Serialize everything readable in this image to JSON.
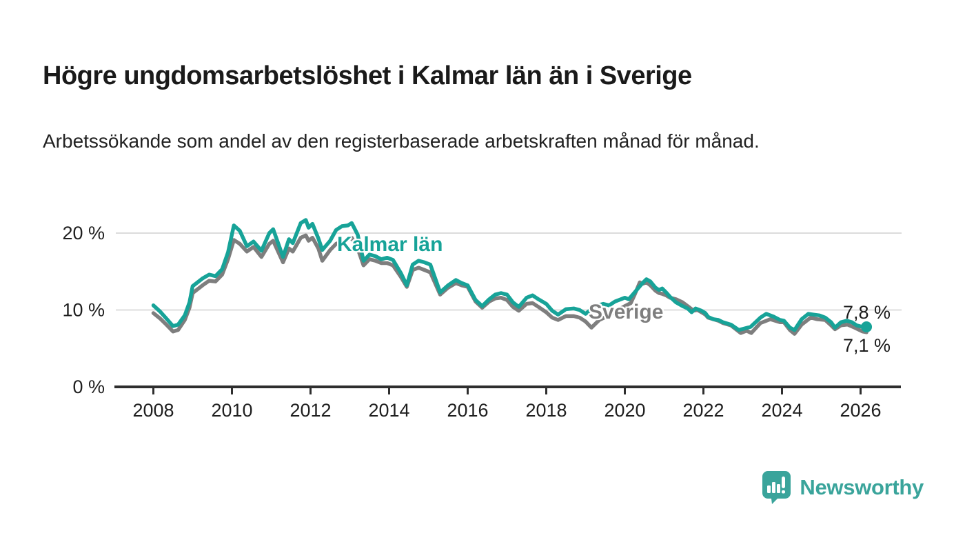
{
  "header": {
    "title": "Högre ungdomsarbetslöshet i Kalmar län än i Sverige",
    "subtitle": "Arbetssökande som andel av den registerbaserade arbetskraften månad för månad."
  },
  "colors": {
    "kalmar": "#17A398",
    "sverige": "#7E7E7E",
    "axis": "#2e2e2e",
    "grid": "#dcdcdc",
    "tick_text": "#1f1f1f",
    "logo_teal": "#3AA49B"
  },
  "annotations": {
    "kalmar_line_label": "Kalmar län",
    "sverige_line_label": "Sverige",
    "kalmar_end_value": "7,8 %",
    "sverige_end_value": "7,1 %"
  },
  "footer": {
    "brand": "Newsworthy",
    "logo_icon": "bar-chart-speech-bubble-icon"
  },
  "chart_data": {
    "type": "line",
    "title": "Högre ungdomsarbetslöshet i Kalmar län än i Sverige",
    "xlabel": "",
    "ylabel": "Arbetssökande som andel av den registerbaserade arbetskraften",
    "x_unit": "year (monthly data)",
    "y_unit": "%",
    "ylim": [
      0,
      22
    ],
    "xlim": [
      2007.1,
      2027.1
    ],
    "grid": "horizontal",
    "legend_position": "inline-labels",
    "y_ticks": [
      {
        "value": 0,
        "label": "0 %"
      },
      {
        "value": 10,
        "label": "10 %"
      },
      {
        "value": 20,
        "label": "20 %"
      }
    ],
    "x_ticks": [
      {
        "value": 2008,
        "label": "2008"
      },
      {
        "value": 2010,
        "label": "2010"
      },
      {
        "value": 2012,
        "label": "2012"
      },
      {
        "value": 2014,
        "label": "2014"
      },
      {
        "value": 2016,
        "label": "2016"
      },
      {
        "value": 2018,
        "label": "2018"
      },
      {
        "value": 2020,
        "label": "2020"
      },
      {
        "value": 2022,
        "label": "2022"
      },
      {
        "value": 2024,
        "label": "2024"
      },
      {
        "value": 2026,
        "label": "2026"
      }
    ],
    "series": [
      {
        "name": "Sverige",
        "color": "#7E7E7E",
        "end_value": 7.1,
        "end_label": "7,1 %",
        "end_dot": false,
        "points": [
          [
            2008.0,
            9.6
          ],
          [
            2008.17,
            8.9
          ],
          [
            2008.33,
            8.1
          ],
          [
            2008.5,
            7.2
          ],
          [
            2008.63,
            7.4
          ],
          [
            2008.8,
            8.7
          ],
          [
            2008.92,
            10.3
          ],
          [
            2009.0,
            12.2
          ],
          [
            2009.25,
            13.2
          ],
          [
            2009.42,
            13.8
          ],
          [
            2009.58,
            13.7
          ],
          [
            2009.75,
            14.6
          ],
          [
            2009.9,
            16.6
          ],
          [
            2010.05,
            19.1
          ],
          [
            2010.2,
            18.6
          ],
          [
            2010.38,
            17.6
          ],
          [
            2010.55,
            18.2
          ],
          [
            2010.75,
            16.9
          ],
          [
            2010.95,
            18.6
          ],
          [
            2011.05,
            19.0
          ],
          [
            2011.3,
            16.2
          ],
          [
            2011.45,
            18.0
          ],
          [
            2011.55,
            17.6
          ],
          [
            2011.75,
            19.4
          ],
          [
            2011.88,
            19.7
          ],
          [
            2011.95,
            19.0
          ],
          [
            2012.05,
            19.4
          ],
          [
            2012.2,
            18.0
          ],
          [
            2012.3,
            16.4
          ],
          [
            2012.5,
            17.8
          ],
          [
            2012.65,
            18.6
          ],
          [
            2012.8,
            18.9
          ],
          [
            2012.95,
            19.1
          ],
          [
            2013.05,
            19.4
          ],
          [
            2013.2,
            18.0
          ],
          [
            2013.35,
            15.8
          ],
          [
            2013.5,
            16.6
          ],
          [
            2013.65,
            16.4
          ],
          [
            2013.8,
            16.1
          ],
          [
            2013.95,
            16.1
          ],
          [
            2014.1,
            15.8
          ],
          [
            2014.3,
            14.3
          ],
          [
            2014.45,
            13.0
          ],
          [
            2014.6,
            15.2
          ],
          [
            2014.75,
            15.5
          ],
          [
            2014.9,
            15.2
          ],
          [
            2015.05,
            14.9
          ],
          [
            2015.3,
            12.0
          ],
          [
            2015.5,
            12.9
          ],
          [
            2015.7,
            13.5
          ],
          [
            2015.85,
            13.2
          ],
          [
            2016.0,
            13.0
          ],
          [
            2016.2,
            11.1
          ],
          [
            2016.37,
            10.3
          ],
          [
            2016.55,
            11.1
          ],
          [
            2016.7,
            11.5
          ],
          [
            2016.85,
            11.6
          ],
          [
            2017.0,
            11.3
          ],
          [
            2017.15,
            10.4
          ],
          [
            2017.3,
            9.9
          ],
          [
            2017.5,
            10.8
          ],
          [
            2017.65,
            10.9
          ],
          [
            2017.8,
            10.4
          ],
          [
            2018.0,
            9.7
          ],
          [
            2018.15,
            9.0
          ],
          [
            2018.3,
            8.7
          ],
          [
            2018.5,
            9.2
          ],
          [
            2018.7,
            9.2
          ],
          [
            2018.85,
            9.0
          ],
          [
            2019.0,
            8.5
          ],
          [
            2019.15,
            7.7
          ],
          [
            2019.35,
            8.7
          ],
          [
            2019.6,
            9.3
          ],
          [
            2019.8,
            9.9
          ],
          [
            2020.0,
            10.5
          ],
          [
            2020.15,
            10.9
          ],
          [
            2020.25,
            12.0
          ],
          [
            2020.38,
            13.6
          ],
          [
            2020.45,
            13.4
          ],
          [
            2020.55,
            13.6
          ],
          [
            2020.65,
            13.2
          ],
          [
            2020.78,
            12.5
          ],
          [
            2020.87,
            12.2
          ],
          [
            2020.95,
            12.1
          ],
          [
            2021.05,
            11.9
          ],
          [
            2021.15,
            11.6
          ],
          [
            2021.3,
            11.4
          ],
          [
            2021.47,
            11.0
          ],
          [
            2021.6,
            10.5
          ],
          [
            2021.75,
            9.9
          ],
          [
            2021.85,
            10.0
          ],
          [
            2021.95,
            9.7
          ],
          [
            2022.05,
            9.4
          ],
          [
            2022.12,
            9.0
          ],
          [
            2022.25,
            8.8
          ],
          [
            2022.38,
            8.6
          ],
          [
            2022.5,
            8.3
          ],
          [
            2022.7,
            8.0
          ],
          [
            2022.95,
            7.0
          ],
          [
            2023.1,
            7.3
          ],
          [
            2023.22,
            7.0
          ],
          [
            2023.45,
            8.3
          ],
          [
            2023.7,
            8.8
          ],
          [
            2023.95,
            8.4
          ],
          [
            2024.05,
            8.4
          ],
          [
            2024.2,
            7.4
          ],
          [
            2024.32,
            6.9
          ],
          [
            2024.5,
            8.1
          ],
          [
            2024.73,
            9.0
          ],
          [
            2024.9,
            8.8
          ],
          [
            2025.1,
            8.7
          ],
          [
            2025.25,
            8.0
          ],
          [
            2025.35,
            7.5
          ],
          [
            2025.5,
            8.0
          ],
          [
            2025.67,
            8.1
          ],
          [
            2025.85,
            7.7
          ],
          [
            2026.05,
            7.2
          ],
          [
            2026.15,
            7.1
          ]
        ]
      },
      {
        "name": "Kalmar län",
        "color": "#17A398",
        "end_value": 7.8,
        "end_label": "7,8 %",
        "end_dot": true,
        "points": [
          [
            2008.0,
            10.6
          ],
          [
            2008.17,
            9.8
          ],
          [
            2008.33,
            8.9
          ],
          [
            2008.5,
            7.9
          ],
          [
            2008.63,
            8.1
          ],
          [
            2008.8,
            9.3
          ],
          [
            2008.92,
            11.0
          ],
          [
            2009.0,
            13.1
          ],
          [
            2009.25,
            14.1
          ],
          [
            2009.42,
            14.6
          ],
          [
            2009.58,
            14.4
          ],
          [
            2009.75,
            15.3
          ],
          [
            2009.9,
            17.5
          ],
          [
            2010.05,
            21.0
          ],
          [
            2010.2,
            20.3
          ],
          [
            2010.38,
            18.3
          ],
          [
            2010.55,
            18.9
          ],
          [
            2010.75,
            17.7
          ],
          [
            2010.95,
            20.0
          ],
          [
            2011.05,
            20.5
          ],
          [
            2011.3,
            16.9
          ],
          [
            2011.45,
            19.2
          ],
          [
            2011.55,
            18.7
          ],
          [
            2011.75,
            21.3
          ],
          [
            2011.88,
            21.7
          ],
          [
            2011.95,
            20.7
          ],
          [
            2012.05,
            21.2
          ],
          [
            2012.2,
            19.3
          ],
          [
            2012.3,
            17.8
          ],
          [
            2012.5,
            19.0
          ],
          [
            2012.65,
            20.4
          ],
          [
            2012.8,
            20.9
          ],
          [
            2012.95,
            21.0
          ],
          [
            2013.05,
            21.3
          ],
          [
            2013.2,
            19.8
          ],
          [
            2013.35,
            16.4
          ],
          [
            2013.5,
            17.2
          ],
          [
            2013.65,
            17.0
          ],
          [
            2013.8,
            16.6
          ],
          [
            2013.95,
            16.8
          ],
          [
            2014.1,
            16.5
          ],
          [
            2014.3,
            14.8
          ],
          [
            2014.45,
            13.2
          ],
          [
            2014.6,
            15.9
          ],
          [
            2014.75,
            16.4
          ],
          [
            2014.9,
            16.2
          ],
          [
            2015.05,
            15.9
          ],
          [
            2015.3,
            12.3
          ],
          [
            2015.5,
            13.2
          ],
          [
            2015.7,
            13.9
          ],
          [
            2015.85,
            13.5
          ],
          [
            2016.0,
            13.2
          ],
          [
            2016.2,
            11.3
          ],
          [
            2016.37,
            10.5
          ],
          [
            2016.55,
            11.4
          ],
          [
            2016.7,
            12.0
          ],
          [
            2016.85,
            12.2
          ],
          [
            2017.0,
            12.0
          ],
          [
            2017.15,
            11.0
          ],
          [
            2017.3,
            10.4
          ],
          [
            2017.5,
            11.6
          ],
          [
            2017.65,
            11.9
          ],
          [
            2017.8,
            11.4
          ],
          [
            2018.0,
            10.8
          ],
          [
            2018.15,
            9.9
          ],
          [
            2018.3,
            9.4
          ],
          [
            2018.5,
            10.1
          ],
          [
            2018.7,
            10.2
          ],
          [
            2018.85,
            10.0
          ],
          [
            2019.0,
            9.5
          ],
          [
            2019.25,
            10.5
          ],
          [
            2019.45,
            10.8
          ],
          [
            2019.6,
            10.6
          ],
          [
            2019.75,
            11.1
          ],
          [
            2019.9,
            11.4
          ],
          [
            2020.0,
            11.6
          ],
          [
            2020.1,
            11.4
          ],
          [
            2020.25,
            12.3
          ],
          [
            2020.35,
            12.9
          ],
          [
            2020.45,
            13.5
          ],
          [
            2020.55,
            14.0
          ],
          [
            2020.65,
            13.7
          ],
          [
            2020.78,
            12.9
          ],
          [
            2020.87,
            12.6
          ],
          [
            2020.95,
            12.8
          ],
          [
            2021.05,
            12.3
          ],
          [
            2021.15,
            11.7
          ],
          [
            2021.3,
            11.0
          ],
          [
            2021.47,
            10.5
          ],
          [
            2021.6,
            10.2
          ],
          [
            2021.7,
            9.7
          ],
          [
            2021.8,
            10.2
          ],
          [
            2021.95,
            9.9
          ],
          [
            2022.05,
            9.6
          ],
          [
            2022.12,
            9.1
          ],
          [
            2022.25,
            8.8
          ],
          [
            2022.38,
            8.7
          ],
          [
            2022.5,
            8.4
          ],
          [
            2022.7,
            8.1
          ],
          [
            2022.9,
            7.4
          ],
          [
            2023.05,
            7.6
          ],
          [
            2023.2,
            7.8
          ],
          [
            2023.45,
            9.0
          ],
          [
            2023.6,
            9.5
          ],
          [
            2023.8,
            9.1
          ],
          [
            2023.95,
            8.7
          ],
          [
            2024.05,
            8.6
          ],
          [
            2024.2,
            7.7
          ],
          [
            2024.32,
            7.4
          ],
          [
            2024.5,
            8.8
          ],
          [
            2024.67,
            9.5
          ],
          [
            2024.8,
            9.4
          ],
          [
            2024.95,
            9.3
          ],
          [
            2025.1,
            9.0
          ],
          [
            2025.25,
            8.4
          ],
          [
            2025.35,
            7.7
          ],
          [
            2025.5,
            8.4
          ],
          [
            2025.65,
            8.6
          ],
          [
            2025.78,
            8.4
          ],
          [
            2025.9,
            8.0
          ],
          [
            2026.05,
            7.8
          ],
          [
            2026.15,
            7.8
          ]
        ]
      }
    ]
  }
}
